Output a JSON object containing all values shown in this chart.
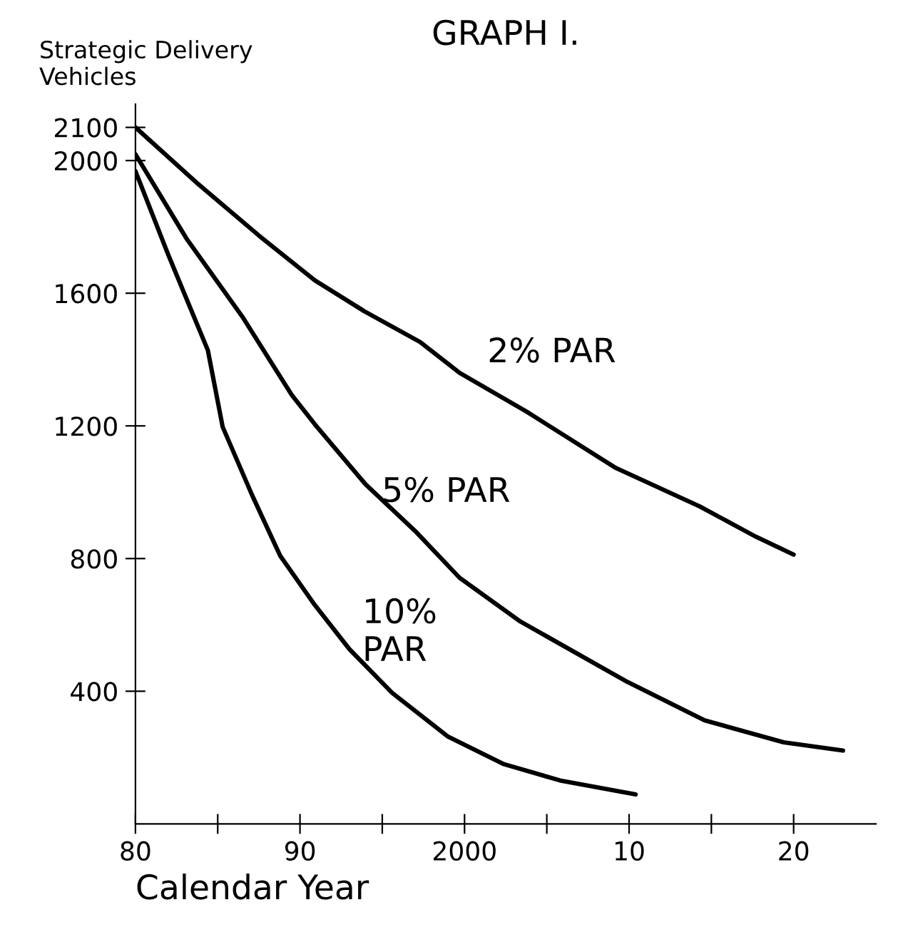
{
  "chart_data": {
    "type": "line",
    "title": "GRAPH I.",
    "xlabel": "Calendar Year",
    "ylabel": "Strategic Delivery\nVehicles",
    "xlim": [
      1980,
      2025
    ],
    "ylim": [
      0,
      2170
    ],
    "xticks": [
      {
        "value": 1980,
        "label": "80"
      },
      {
        "value": 1985,
        "label": null
      },
      {
        "value": 1990,
        "label": "90"
      },
      {
        "value": 1995,
        "label": null
      },
      {
        "value": 2000,
        "label": "2000"
      },
      {
        "value": 2005,
        "label": null
      },
      {
        "value": 2010,
        "label": "10"
      },
      {
        "value": 2015,
        "label": null
      },
      {
        "value": 2020,
        "label": "20"
      }
    ],
    "yticks": [
      400,
      800,
      1200,
      1600,
      2000,
      2100
    ],
    "grid": false,
    "marker": "none",
    "line_style": "solid",
    "series": [
      {
        "name": "2% PAR",
        "color": "#000000",
        "x": [
          1980,
          1983.7,
          1987.5,
          1990.9,
          1993.9,
          1997.3,
          1999.7,
          2003.8,
          2009.2,
          2014.3,
          2017.7,
          2020
        ],
        "values": [
          2100,
          1934,
          1774,
          1639,
          1546,
          1453,
          1360,
          1242,
          1073,
          957,
          866,
          812
        ]
      },
      {
        "name": "5% PAR",
        "color": "#000000",
        "x": [
          1980,
          1983.1,
          1986.5,
          1989.5,
          1990.9,
          1994,
          1997,
          1999.7,
          2003.4,
          2009.9,
          2014.6,
          2019.4,
          2023
        ],
        "values": [
          2019,
          1765,
          1529,
          1293,
          1205,
          1023,
          883,
          742,
          610,
          428,
          312,
          246,
          221
        ]
      },
      {
        "name": "10%\nPAR",
        "color": "#000000",
        "x": [
          1980,
          1982,
          1984.4,
          1985.3,
          1987.1,
          1988.8,
          1990.9,
          1993,
          1995.6,
          1999,
          2002.4,
          2005.8,
          2010.4
        ],
        "values": [
          1968,
          1715,
          1428,
          1197,
          990,
          808,
          660,
          527,
          395,
          263,
          180,
          131,
          89
        ]
      }
    ]
  }
}
